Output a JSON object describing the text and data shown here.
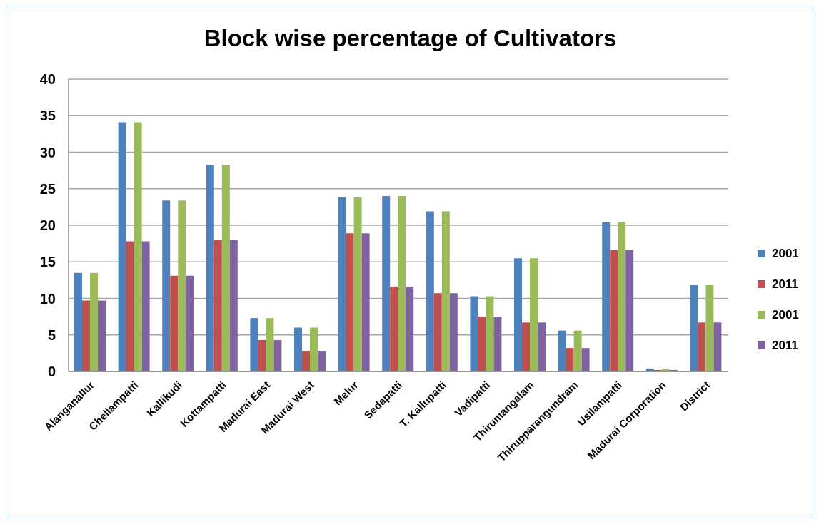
{
  "chart_data": {
    "type": "bar",
    "title": "Block wise percentage of Cultivators",
    "categories": [
      "Alanganallur",
      "Chellampatti",
      "Kallikudi",
      "Kottampatti",
      "Madurai East",
      "Madurai West",
      "Melur",
      "Sedapatti",
      "T. Kallupatti",
      "Vadipatti",
      "Thirumangalam",
      "Thirupparangundram",
      "Usilampatti",
      "Madurai Corporation",
      "District"
    ],
    "series": [
      {
        "name": "2001",
        "color": "#4f81bd",
        "values": [
          13.5,
          34.1,
          23.4,
          28.3,
          7.3,
          6.0,
          23.8,
          24.0,
          21.9,
          10.3,
          15.5,
          5.6,
          20.4,
          0.4,
          11.8
        ]
      },
      {
        "name": "2011",
        "color": "#c0504d",
        "values": [
          9.7,
          17.8,
          13.1,
          18.0,
          4.3,
          2.8,
          18.9,
          11.6,
          10.7,
          7.5,
          6.7,
          3.2,
          16.6,
          0.2,
          6.7
        ]
      },
      {
        "name": "2001",
        "color": "#9bbb59",
        "values": [
          13.5,
          34.1,
          23.4,
          28.3,
          7.3,
          6.0,
          23.8,
          24.0,
          21.9,
          10.3,
          15.5,
          5.6,
          20.4,
          0.4,
          11.8
        ]
      },
      {
        "name": "2011",
        "color": "#8064a2",
        "values": [
          9.7,
          17.8,
          13.1,
          18.0,
          4.3,
          2.8,
          18.9,
          11.6,
          10.7,
          7.5,
          6.7,
          3.2,
          16.6,
          0.2,
          6.7
        ]
      }
    ],
    "ylim": [
      0,
      40
    ],
    "yticks": [
      0,
      5,
      10,
      15,
      20,
      25,
      30,
      35,
      40
    ],
    "grid": "y",
    "legend": "right"
  }
}
